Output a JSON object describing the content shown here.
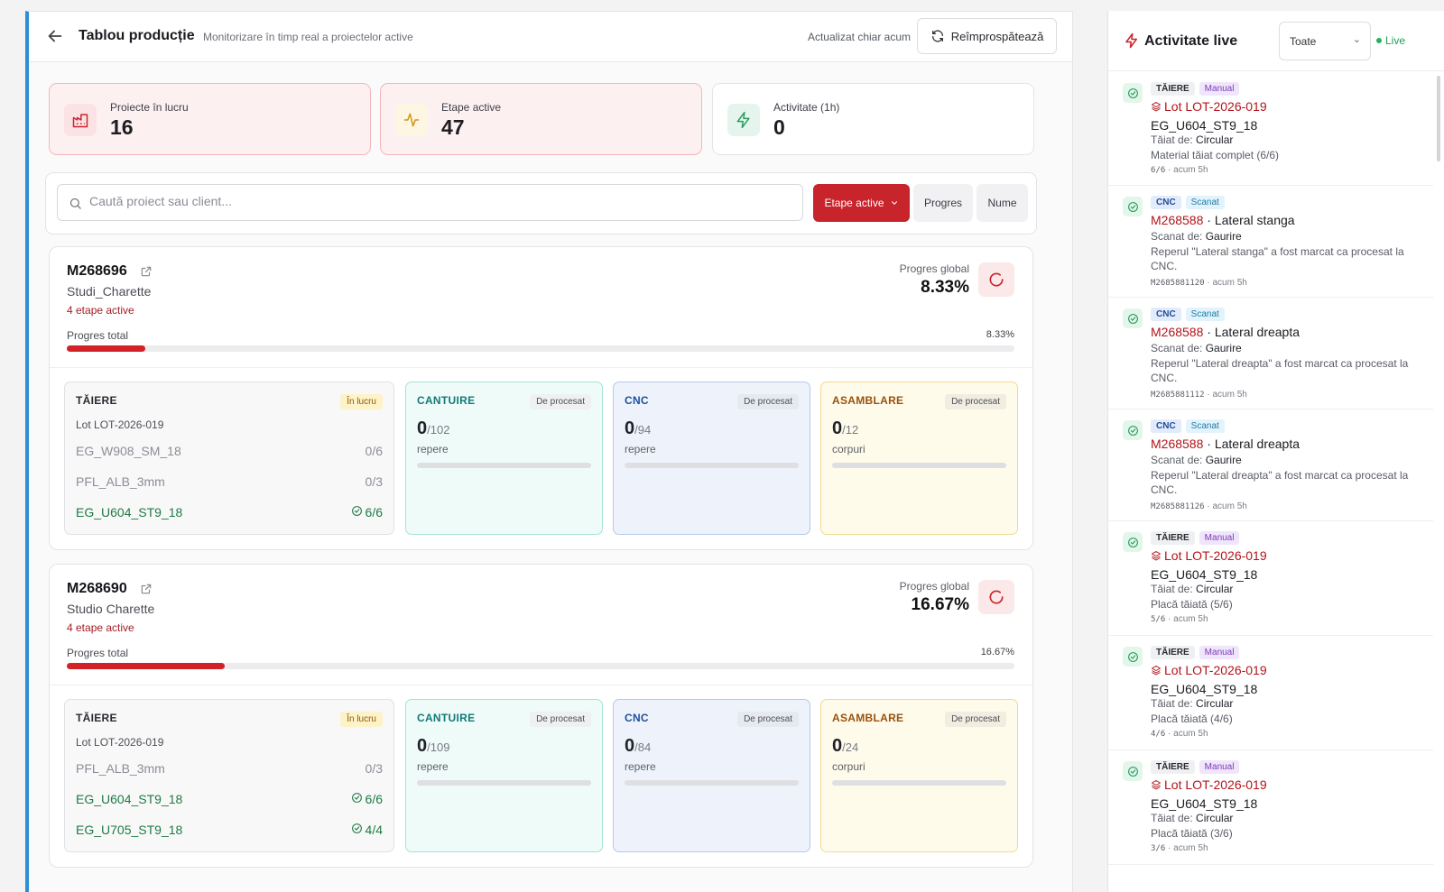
{
  "header": {
    "title": "Tablou producție",
    "subtitle": "Monitorizare în timp real a proiectelor active",
    "updated": "Actualizat chiar acum",
    "refresh_label": "Reîmprospătează"
  },
  "stats": [
    {
      "label": "Proiecte în lucru",
      "value": "16",
      "icon": "factory-icon",
      "bg": "#fdf0f1",
      "border": "#f4b6ba",
      "icon_bg": "#fbe3e5",
      "icon_color": "#c8242b"
    },
    {
      "label": "Etape active",
      "value": "47",
      "icon": "activity-icon",
      "bg": "#fdf0f1",
      "border": "#f4b6ba",
      "icon_bg": "#fdf6e2",
      "icon_color": "#d19511"
    },
    {
      "label": "Activitate (1h)",
      "value": "0",
      "icon": "zap-icon",
      "bg": "#ffffff",
      "border": "#e3e4e8",
      "icon_bg": "#e5f5ed",
      "icon_color": "#2a9d5f"
    }
  ],
  "search": {
    "placeholder": "Caută proiect sau client..."
  },
  "sort": {
    "active_label": "Etape active",
    "progress_label": "Progres",
    "name_label": "Nume"
  },
  "projects": [
    {
      "code": "M268696",
      "client": "Studi_Charette",
      "stages_active": "4 etape active",
      "global_label": "Progres global",
      "global_value": "8.33%",
      "total_label": "Progres total",
      "total_value": "8.33%",
      "progress": 8.33,
      "taiere": {
        "title": "TĂIERE",
        "badge": "În lucru",
        "lot": "Lot LOT-2026-019",
        "rows": [
          {
            "name": "EG_W908_SM_18",
            "value": "0/6",
            "done": false
          },
          {
            "name": "PFL_ALB_3mm",
            "value": "0/3",
            "done": false
          },
          {
            "name": "EG_U604_ST9_18",
            "value": "6/6",
            "done": true
          }
        ]
      },
      "stages": [
        {
          "title": "CANTUIRE",
          "badge": "De procesat",
          "num": "0",
          "den": "/102",
          "unit": "repere"
        },
        {
          "title": "CNC",
          "badge": "De procesat",
          "num": "0",
          "den": "/94",
          "unit": "repere"
        },
        {
          "title": "ASAMBLARE",
          "badge": "De procesat",
          "num": "0",
          "den": "/12",
          "unit": "corpuri"
        }
      ]
    },
    {
      "code": "M268690",
      "client": "Studio Charette",
      "stages_active": "4 etape active",
      "global_label": "Progres global",
      "global_value": "16.67%",
      "total_label": "Progres total",
      "total_value": "16.67%",
      "progress": 16.67,
      "taiere": {
        "title": "TĂIERE",
        "badge": "În lucru",
        "lot": "Lot LOT-2026-019",
        "rows": [
          {
            "name": "PFL_ALB_3mm",
            "value": "0/3",
            "done": false
          },
          {
            "name": "EG_U604_ST9_18",
            "value": "6/6",
            "done": true
          },
          {
            "name": "EG_U705_ST9_18",
            "value": "4/4",
            "done": true
          }
        ]
      },
      "stages": [
        {
          "title": "CANTUIRE",
          "badge": "De procesat",
          "num": "0",
          "den": "/109",
          "unit": "repere"
        },
        {
          "title": "CNC",
          "badge": "De procesat",
          "num": "0",
          "den": "/84",
          "unit": "repere"
        },
        {
          "title": "ASAMBLARE",
          "badge": "De procesat",
          "num": "0",
          "den": "/24",
          "unit": "corpuri"
        }
      ]
    }
  ],
  "sidebar": {
    "title": "Activitate live",
    "filter_value": "Toate",
    "live_label": "Live",
    "activities": [
      {
        "tag1": "TĂIERE",
        "tag2": "Manual",
        "kind": "lot",
        "line1": "Lot LOT-2026-019",
        "line1b": "",
        "line2": "EG_U604_ST9_18",
        "by_label": "Tăiat de:",
        "by": "Circular",
        "desc": "Material tăiat complet (6/6)",
        "meta_a": "6/6",
        "meta_b": "acum 5h"
      },
      {
        "tag1": "CNC",
        "tag2": "Scanat",
        "kind": "part",
        "line1": "M268588",
        "line1b": " · Lateral stanga",
        "line2": "",
        "by_label": "Scanat de:",
        "by": "Gaurire",
        "desc": "Reperul \"Lateral stanga\" a fost marcat ca procesat la CNC.",
        "meta_a": "M2685881120",
        "meta_b": "acum 5h"
      },
      {
        "tag1": "CNC",
        "tag2": "Scanat",
        "kind": "part",
        "line1": "M268588",
        "line1b": " · Lateral dreapta",
        "line2": "",
        "by_label": "Scanat de:",
        "by": "Gaurire",
        "desc": "Reperul \"Lateral dreapta\" a fost marcat ca procesat la CNC.",
        "meta_a": "M2685881112",
        "meta_b": "acum 5h"
      },
      {
        "tag1": "CNC",
        "tag2": "Scanat",
        "kind": "part",
        "line1": "M268588",
        "line1b": " · Lateral dreapta",
        "line2": "",
        "by_label": "Scanat de:",
        "by": "Gaurire",
        "desc": "Reperul \"Lateral dreapta\" a fost marcat ca procesat la CNC.",
        "meta_a": "M2685881126",
        "meta_b": "acum 5h"
      },
      {
        "tag1": "TĂIERE",
        "tag2": "Manual",
        "kind": "lot",
        "line1": "Lot LOT-2026-019",
        "line1b": "",
        "line2": "EG_U604_ST9_18",
        "by_label": "Tăiat de:",
        "by": "Circular",
        "desc": "Placă tăiată (5/6)",
        "meta_a": "5/6",
        "meta_b": "acum 5h"
      },
      {
        "tag1": "TĂIERE",
        "tag2": "Manual",
        "kind": "lot",
        "line1": "Lot LOT-2026-019",
        "line1b": "",
        "line2": "EG_U604_ST9_18",
        "by_label": "Tăiat de:",
        "by": "Circular",
        "desc": "Placă tăiată (4/6)",
        "meta_a": "4/6",
        "meta_b": "acum 5h"
      },
      {
        "tag1": "TĂIERE",
        "tag2": "Manual",
        "kind": "lot",
        "line1": "Lot LOT-2026-019",
        "line1b": "",
        "line2": "EG_U604_ST9_18",
        "by_label": "Tăiat de:",
        "by": "Circular",
        "desc": "Placă tăiată (3/6)",
        "meta_a": "3/6",
        "meta_b": "acum 5h"
      }
    ]
  },
  "colors": {
    "accent": "#c8242b",
    "blue_edge": "#2c8fd6",
    "cantuire": "#127a75",
    "cnc": "#1d4f9a",
    "asamblare": "#98520e",
    "done_green": "#1e7a43"
  }
}
